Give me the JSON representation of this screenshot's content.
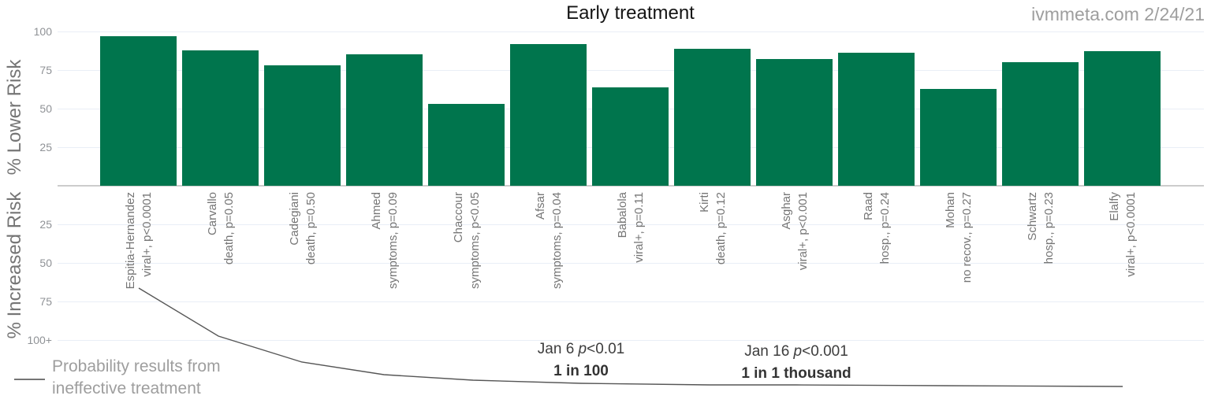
{
  "header": {
    "title": "Early treatment",
    "source": "ivmmeta.com 2/24/21"
  },
  "axes": {
    "upper_label": "% Lower Risk",
    "lower_label": "% Increased Risk",
    "upper_ticks": [
      "100",
      "75",
      "50",
      "25"
    ],
    "lower_ticks": [
      "25",
      "50",
      "75",
      "100+"
    ]
  },
  "legend": {
    "line1": "Probability results from",
    "line2": "ineffective treatment"
  },
  "annotations": {
    "first": {
      "prefix": "Jan 6 ",
      "italic": "p",
      "suffix": "<0.01",
      "value": "1 in 100"
    },
    "second": {
      "prefix": "Jan 16 ",
      "italic": "p",
      "suffix": "<0.001",
      "value": "1 in 1 thousand"
    }
  },
  "chart_data": {
    "type": "bar",
    "title": "Early treatment",
    "source": "ivmmeta.com 2/24/21",
    "categories": [
      "Espitia-Hernandez",
      "Carvallo",
      "Cadegiani",
      "Ahmed",
      "Chaccour",
      "Afsar",
      "Babalola",
      "Kirti",
      "Asghar",
      "Raad",
      "Mohan",
      "Schwartz",
      "Elalfy"
    ],
    "outcome_labels": [
      "viral+, p<0.0001",
      "death, p=0.05",
      "death, p=0.50",
      "symptoms, p=0.09",
      "symptoms, p<0.05",
      "symptoms, p=0.04",
      "viral+, p=0.11",
      "death, p=0.12",
      "viral+, p<0.001",
      "hosp., p=0.24",
      "no recov., p=0.27",
      "hosp., p=0.23",
      "viral+, p<0.0001"
    ],
    "values": [
      97,
      88,
      78,
      85,
      53,
      92,
      64,
      89,
      82,
      86,
      63,
      80,
      87
    ],
    "ylabel_upper": "% Lower Risk",
    "ylabel_lower": "% Increased Risk",
    "yticks_upper": [
      "100",
      "75",
      "50",
      "25"
    ],
    "yticks_lower": [
      "25",
      "50",
      "75",
      "100+"
    ],
    "ylim": [
      -100,
      100
    ],
    "grid": true,
    "legend_position": "bottom-left",
    "bar_color": "#00754D",
    "annotation_curve": "Probability results from ineffective treatment"
  }
}
